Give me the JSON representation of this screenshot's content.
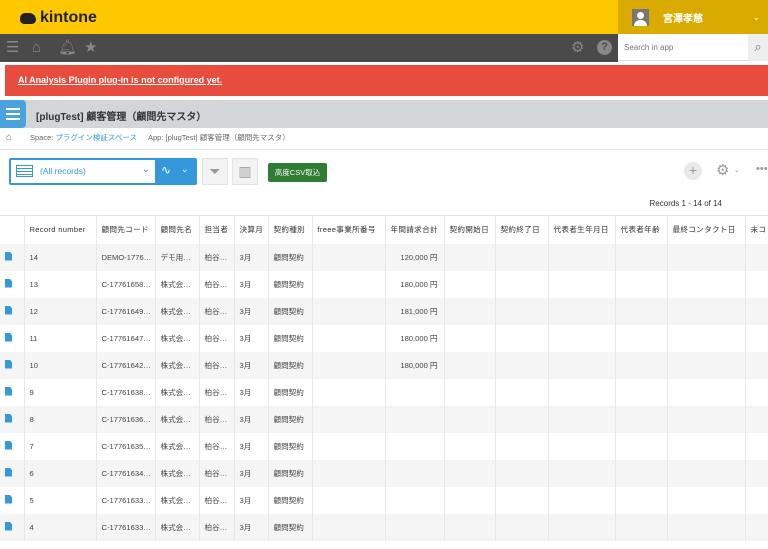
{
  "header": {
    "logo": "kintone",
    "user_name": "宮澤孝慈",
    "search_placeholder": "Search in app"
  },
  "alert": {
    "message": "AI Analysis Plugin plug-in is not configured yet."
  },
  "app": {
    "title": "[plugTest] 顧客管理（顧問先マスタ）"
  },
  "breadcrumb": {
    "space_prefix": "Space: ",
    "space_name": "プラグイン検証スペース",
    "app": "App: [plugTest] 顧客管理（顧問先マスタ）"
  },
  "toolbar": {
    "view": "(All records)",
    "csv_button": "高度CSV取込"
  },
  "records_count": "Records 1 - 14 of 14",
  "colors": {
    "header": "#fdc800",
    "alert": "#e74c3c",
    "accent": "#3498db",
    "csv": "#2e7d32"
  },
  "table": {
    "columns": [
      "Record number",
      "顧問先コード",
      "顧問先名",
      "担当者",
      "決算月",
      "契約種別",
      "freee事業所番号",
      "年間請求合計",
      "契約開始日",
      "契約終了日",
      "代表者生年月日",
      "代表者年齢",
      "最終コンタクト日",
      "未コ"
    ],
    "rows": [
      [
        "14",
        "DEMO-1776…",
        "デモ用…",
        "柏谷…",
        "3月",
        "顧問契約",
        "",
        "120,000 円"
      ],
      [
        "13",
        "C-17761658…",
        "株式会…",
        "柏谷…",
        "3月",
        "顧問契約",
        "",
        "180,000 円"
      ],
      [
        "12",
        "C-17761649…",
        "株式会…",
        "柏谷…",
        "3月",
        "顧問契約",
        "",
        "181,000 円"
      ],
      [
        "11",
        "C-17761647…",
        "株式会…",
        "柏谷…",
        "3月",
        "顧問契約",
        "",
        "180,000 円"
      ],
      [
        "10",
        "C-17761642…",
        "株式会…",
        "柏谷…",
        "3月",
        "顧問契約",
        "",
        "180,000 円"
      ],
      [
        "9",
        "C-17761638…",
        "株式会…",
        "柏谷…",
        "3月",
        "顧問契約",
        "",
        ""
      ],
      [
        "8",
        "C-17761636…",
        "株式会…",
        "柏谷…",
        "3月",
        "顧問契約",
        "",
        ""
      ],
      [
        "7",
        "C-17761635…",
        "株式会…",
        "柏谷…",
        "3月",
        "顧問契約",
        "",
        ""
      ],
      [
        "6",
        "C-17761634…",
        "株式会…",
        "柏谷…",
        "3月",
        "顧問契約",
        "",
        ""
      ],
      [
        "5",
        "C-17761633…",
        "株式会…",
        "柏谷…",
        "3月",
        "顧問契約",
        "",
        ""
      ],
      [
        "4",
        "C-17761633…",
        "株式会…",
        "柏谷…",
        "3月",
        "顧問契約",
        "",
        ""
      ]
    ]
  }
}
